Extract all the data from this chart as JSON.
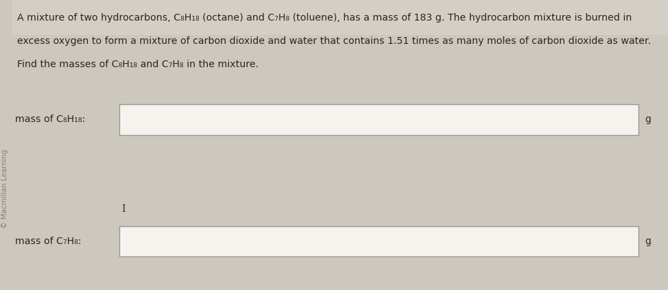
{
  "background_color": "#cdc8be",
  "main_bg_color": "#f0ede6",
  "top_stripe_color": "#d4cfc6",
  "box_fill_color": "#f5f3ee",
  "box_border_color": "#9a9590",
  "text_color": "#2a2520",
  "sidebar_color": "#888078",
  "sidebar_text": "© Macmillan Learning",
  "problem_line1": "A mixture of two hydrocarbons, C₈H₁₈ (octane) and C₇H₈ (toluene), has a mass of 183 g. The hydrocarbon mixture is burned in",
  "problem_line2": "excess oxygen to form a mixture of carbon dioxide and water that contains 1.51 times as many moles of carbon dioxide as water.",
  "problem_line3": "Find the masses of C₈H₁₈ and C₇H₈ in the mixture.",
  "label1": "mass of C₈H₁₈:",
  "label2": "mass of C₇H₈:",
  "unit": "g",
  "cursor_char": "I",
  "font_size_problem": 10.2,
  "font_size_label": 10.2,
  "font_size_sidebar": 7.5,
  "font_size_unit": 10.0
}
